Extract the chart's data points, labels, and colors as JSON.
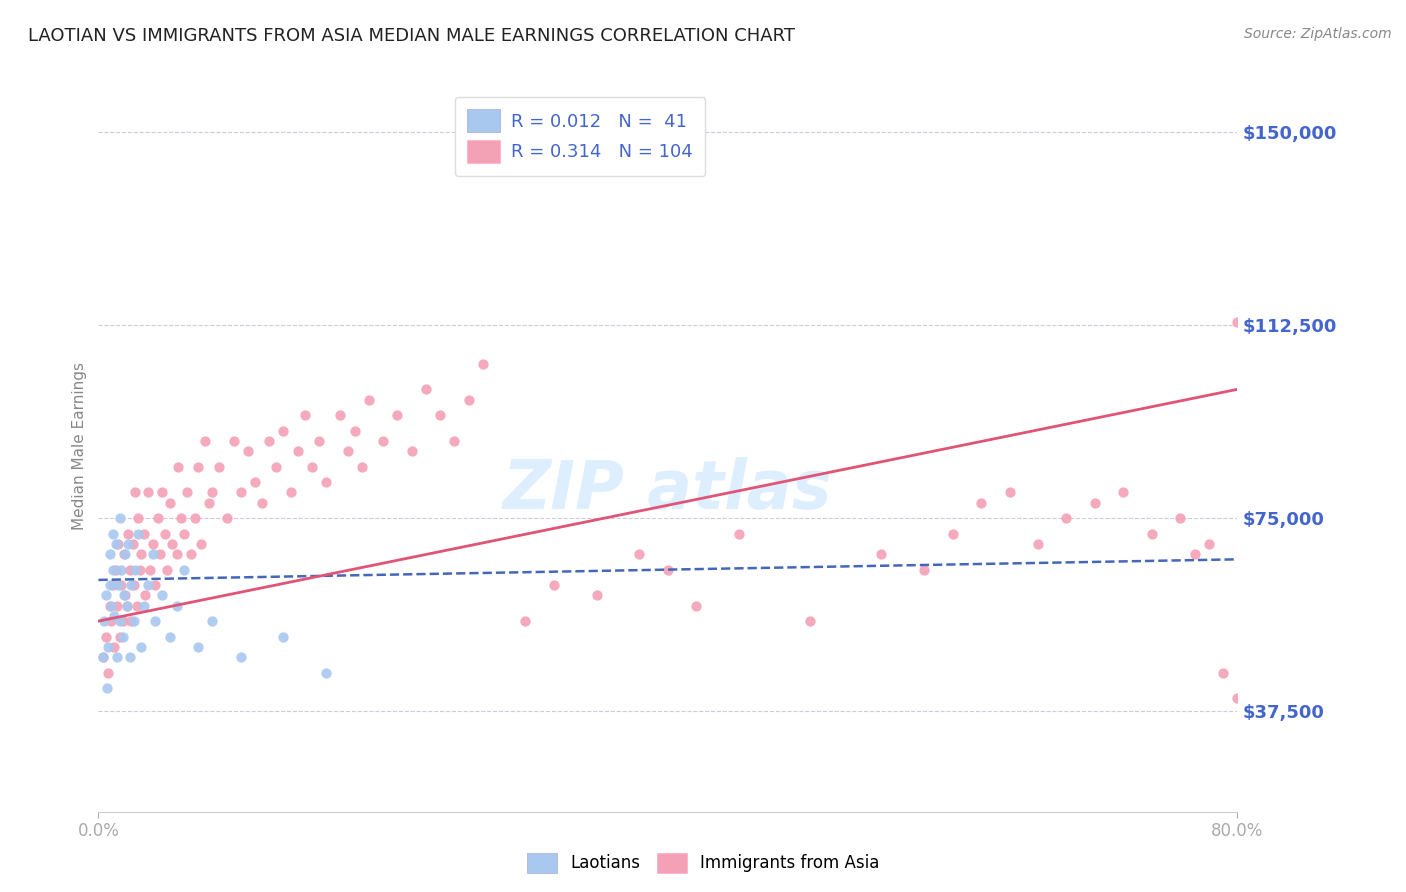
{
  "title": "LAOTIAN VS IMMIGRANTS FROM ASIA MEDIAN MALE EARNINGS CORRELATION CHART",
  "source": "Source: ZipAtlas.com",
  "ylabel": "Median Male Earnings",
  "yticks": [
    37500,
    75000,
    112500,
    150000
  ],
  "ytick_labels": [
    "$37,500",
    "$75,000",
    "$112,500",
    "$150,000"
  ],
  "xmin": 0.0,
  "xmax": 0.8,
  "ymin": 18000,
  "ymax": 160000,
  "color_laotian": "#a8c8f0",
  "color_asia": "#f4a0b5",
  "color_laotian_line": "#4466bb",
  "color_asia_line": "#e05575",
  "color_ytick_labels": "#4466cc",
  "color_title": "#222222",
  "color_grid": "#ccccdd",
  "color_source": "#888888",
  "color_xtick": "#888888",
  "color_ylabel": "#888888",
  "watermark_color": "#ddeeff",
  "laotian_x": [
    0.003,
    0.004,
    0.005,
    0.006,
    0.007,
    0.008,
    0.008,
    0.009,
    0.01,
    0.01,
    0.011,
    0.012,
    0.013,
    0.014,
    0.015,
    0.015,
    0.016,
    0.017,
    0.018,
    0.019,
    0.02,
    0.021,
    0.022,
    0.023,
    0.025,
    0.026,
    0.028,
    0.03,
    0.032,
    0.035,
    0.038,
    0.04,
    0.045,
    0.05,
    0.055,
    0.06,
    0.07,
    0.08,
    0.1,
    0.13,
    0.16
  ],
  "laotian_y": [
    48000,
    55000,
    60000,
    42000,
    50000,
    62000,
    68000,
    58000,
    72000,
    65000,
    56000,
    70000,
    48000,
    62000,
    75000,
    55000,
    65000,
    52000,
    60000,
    68000,
    58000,
    70000,
    48000,
    62000,
    55000,
    65000,
    72000,
    50000,
    58000,
    62000,
    68000,
    55000,
    60000,
    52000,
    58000,
    65000,
    50000,
    55000,
    48000,
    52000,
    45000
  ],
  "asia_x": [
    0.003,
    0.005,
    0.007,
    0.008,
    0.009,
    0.01,
    0.011,
    0.012,
    0.013,
    0.014,
    0.015,
    0.016,
    0.017,
    0.018,
    0.019,
    0.02,
    0.021,
    0.022,
    0.023,
    0.024,
    0.025,
    0.026,
    0.027,
    0.028,
    0.029,
    0.03,
    0.032,
    0.033,
    0.035,
    0.036,
    0.038,
    0.04,
    0.042,
    0.043,
    0.045,
    0.047,
    0.048,
    0.05,
    0.052,
    0.055,
    0.056,
    0.058,
    0.06,
    0.062,
    0.065,
    0.068,
    0.07,
    0.072,
    0.075,
    0.078,
    0.08,
    0.085,
    0.09,
    0.095,
    0.1,
    0.105,
    0.11,
    0.115,
    0.12,
    0.125,
    0.13,
    0.135,
    0.14,
    0.145,
    0.15,
    0.155,
    0.16,
    0.17,
    0.175,
    0.18,
    0.185,
    0.19,
    0.2,
    0.21,
    0.22,
    0.23,
    0.24,
    0.25,
    0.26,
    0.27,
    0.3,
    0.32,
    0.35,
    0.38,
    0.4,
    0.42,
    0.45,
    0.5,
    0.55,
    0.58,
    0.6,
    0.62,
    0.64,
    0.66,
    0.68,
    0.7,
    0.72,
    0.74,
    0.76,
    0.77,
    0.78,
    0.79,
    0.8,
    0.8
  ],
  "asia_y": [
    48000,
    52000,
    45000,
    58000,
    55000,
    62000,
    50000,
    65000,
    58000,
    70000,
    52000,
    62000,
    55000,
    68000,
    60000,
    58000,
    72000,
    65000,
    55000,
    70000,
    62000,
    80000,
    58000,
    75000,
    65000,
    68000,
    72000,
    60000,
    80000,
    65000,
    70000,
    62000,
    75000,
    68000,
    80000,
    72000,
    65000,
    78000,
    70000,
    68000,
    85000,
    75000,
    72000,
    80000,
    68000,
    75000,
    85000,
    70000,
    90000,
    78000,
    80000,
    85000,
    75000,
    90000,
    80000,
    88000,
    82000,
    78000,
    90000,
    85000,
    92000,
    80000,
    88000,
    95000,
    85000,
    90000,
    82000,
    95000,
    88000,
    92000,
    85000,
    98000,
    90000,
    95000,
    88000,
    100000,
    95000,
    90000,
    98000,
    105000,
    55000,
    62000,
    60000,
    68000,
    65000,
    58000,
    72000,
    55000,
    68000,
    65000,
    72000,
    78000,
    80000,
    70000,
    75000,
    78000,
    80000,
    72000,
    75000,
    68000,
    70000,
    45000,
    113000,
    40000
  ]
}
